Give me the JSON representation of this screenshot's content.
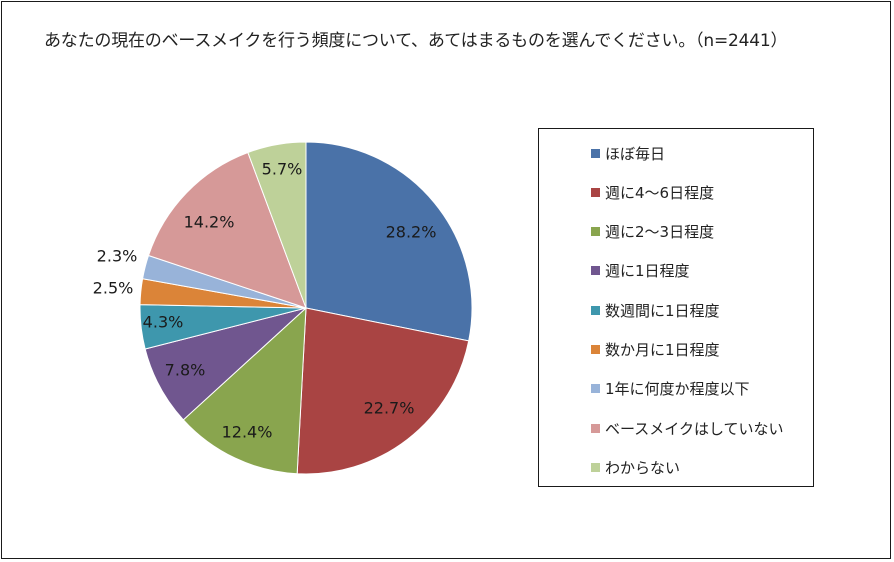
{
  "chart_data": {
    "type": "pie",
    "title": "あなたの現在のベースメイクを行う頻度について、あてはまるものを選んでください。（n=2441）",
    "legend_position": "right",
    "slices": [
      {
        "label": "ほぼ毎日",
        "value": 28.2,
        "value_label": "28.2%",
        "color": "#4a72a8"
      },
      {
        "label": "週に4～6日程度",
        "value": 22.7,
        "value_label": "22.7%",
        "color": "#a94443"
      },
      {
        "label": "週に2～3日程度",
        "value": 12.4,
        "value_label": "12.4%",
        "color": "#89a54e"
      },
      {
        "label": "週に1日程度",
        "value": 7.8,
        "value_label": "7.8%",
        "color": "#70568f"
      },
      {
        "label": "数週間に1日程度",
        "value": 4.3,
        "value_label": "4.3%",
        "color": "#3e97ad"
      },
      {
        "label": "数か月に1日程度",
        "value": 2.5,
        "value_label": "2.5%",
        "color": "#db8438"
      },
      {
        "label": "1年に何度か程度以下",
        "value": 2.3,
        "value_label": "2.3%",
        "color": "#98b3d9"
      },
      {
        "label": "ベースメイクはしていない",
        "value": 14.2,
        "value_label": "14.2%",
        "color": "#d69998"
      },
      {
        "label": "わからない",
        "value": 5.7,
        "value_label": "5.7%",
        "color": "#bed199"
      }
    ]
  }
}
